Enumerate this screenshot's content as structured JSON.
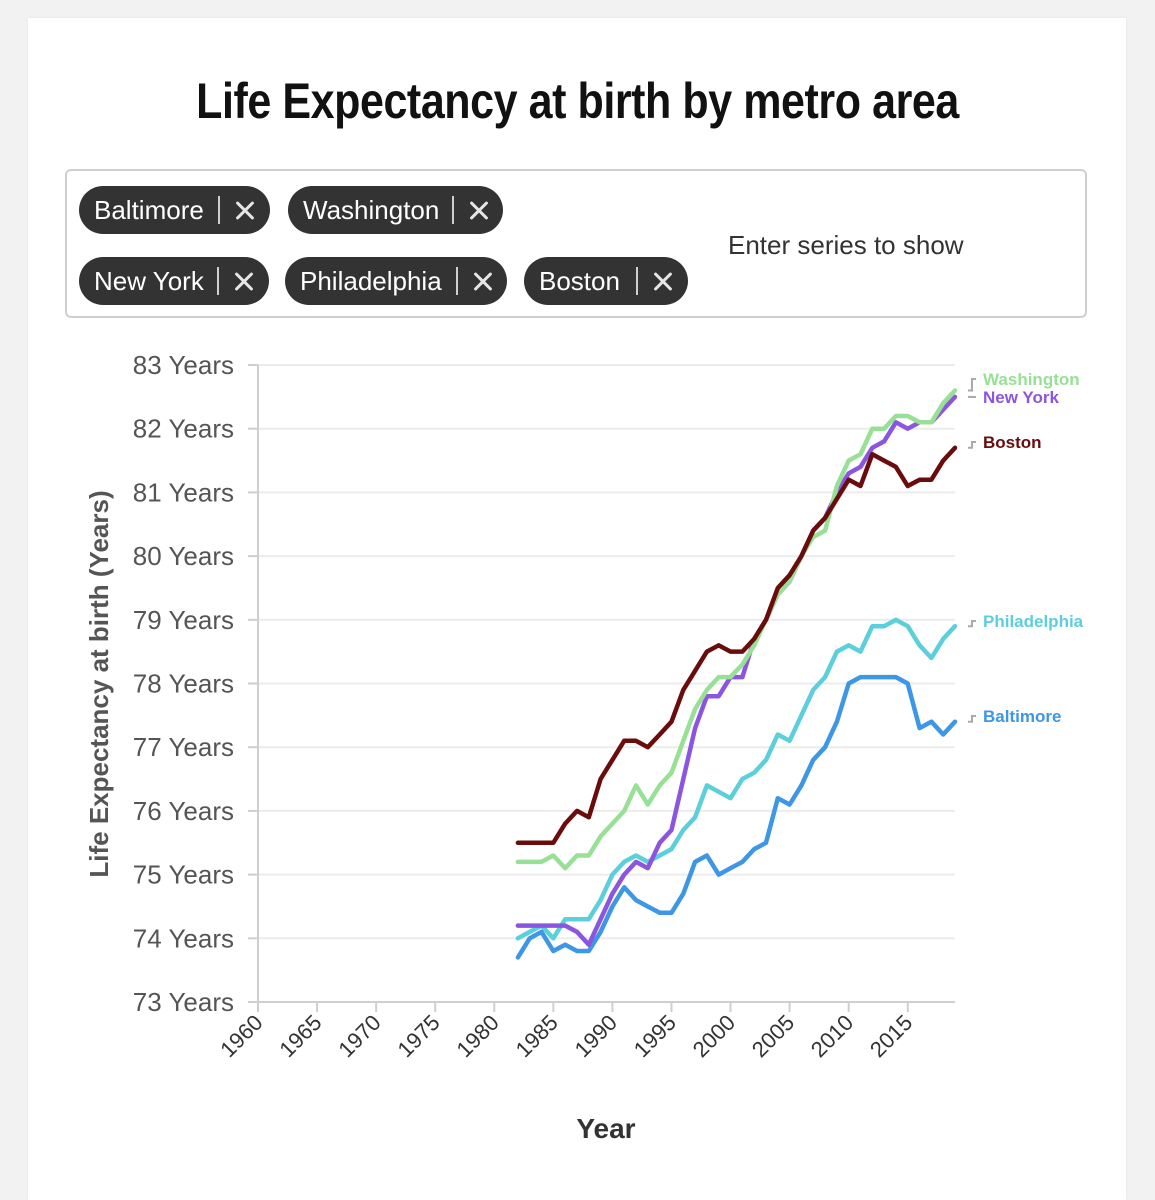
{
  "title": "Life Expectancy at birth by metro area",
  "selector": {
    "placeholder": "Enter series to show",
    "chips": [
      {
        "label": "Baltimore"
      },
      {
        "label": "Washington"
      },
      {
        "label": "New York"
      },
      {
        "label": "Philadelphia"
      },
      {
        "label": "Boston"
      }
    ]
  },
  "colors": {
    "Washington": "#98e096",
    "New York": "#8c55e0",
    "Boston": "#6b0c0c",
    "Philadelphia": "#5ccfdc",
    "Baltimore": "#3d96e6"
  },
  "chart_data": {
    "type": "line",
    "title": "Life Expectancy at birth by metro area",
    "xlabel": "Year",
    "ylabel": "Life Expectancy at birth (Years)",
    "xlim": [
      1960,
      2019
    ],
    "ylim": [
      73,
      83
    ],
    "x_ticks": [
      1960,
      1965,
      1970,
      1975,
      1980,
      1985,
      1990,
      1995,
      2000,
      2005,
      2010,
      2015
    ],
    "y_ticks": [
      73,
      74,
      75,
      76,
      77,
      78,
      79,
      80,
      81,
      82,
      83
    ],
    "y_tick_suffix": " Years",
    "grid": true,
    "x": [
      1982,
      1983,
      1984,
      1985,
      1986,
      1987,
      1988,
      1989,
      1990,
      1991,
      1992,
      1993,
      1994,
      1995,
      1996,
      1997,
      1998,
      1999,
      2000,
      2001,
      2002,
      2003,
      2004,
      2005,
      2006,
      2007,
      2008,
      2009,
      2010,
      2011,
      2012,
      2013,
      2014,
      2015,
      2016,
      2017,
      2018,
      2019
    ],
    "series": [
      {
        "name": "Washington",
        "values": [
          75.2,
          75.2,
          75.2,
          75.3,
          75.1,
          75.3,
          75.3,
          75.6,
          75.8,
          76.0,
          76.4,
          76.1,
          76.4,
          76.6,
          77.1,
          77.6,
          77.9,
          78.1,
          78.1,
          78.3,
          78.6,
          79.0,
          79.4,
          79.6,
          80.0,
          80.3,
          80.4,
          81.1,
          81.5,
          81.6,
          82.0,
          82.0,
          82.2,
          82.2,
          82.1,
          82.1,
          82.4,
          82.6
        ]
      },
      {
        "name": "New York",
        "values": [
          74.2,
          74.2,
          74.2,
          74.2,
          74.2,
          74.1,
          73.9,
          74.3,
          74.7,
          75.0,
          75.2,
          75.1,
          75.5,
          75.7,
          76.5,
          77.3,
          77.8,
          77.8,
          78.1,
          78.1,
          78.7,
          79.0,
          79.4,
          79.6,
          80.0,
          80.4,
          80.6,
          81.0,
          81.3,
          81.4,
          81.7,
          81.8,
          82.1,
          82.0,
          82.1,
          82.1,
          82.3,
          82.5
        ]
      },
      {
        "name": "Boston",
        "values": [
          75.5,
          75.5,
          75.5,
          75.5,
          75.8,
          76.0,
          75.9,
          76.5,
          76.8,
          77.1,
          77.1,
          77.0,
          77.2,
          77.4,
          77.9,
          78.2,
          78.5,
          78.6,
          78.5,
          78.5,
          78.7,
          79.0,
          79.5,
          79.7,
          80.0,
          80.4,
          80.6,
          80.9,
          81.2,
          81.1,
          81.6,
          81.5,
          81.4,
          81.1,
          81.2,
          81.2,
          81.5,
          81.7
        ]
      },
      {
        "name": "Philadelphia",
        "values": [
          74.0,
          74.1,
          74.2,
          74.0,
          74.3,
          74.3,
          74.3,
          74.6,
          75.0,
          75.2,
          75.3,
          75.2,
          75.3,
          75.4,
          75.7,
          75.9,
          76.4,
          76.3,
          76.2,
          76.5,
          76.6,
          76.8,
          77.2,
          77.1,
          77.5,
          77.9,
          78.1,
          78.5,
          78.6,
          78.5,
          78.9,
          78.9,
          79.0,
          78.9,
          78.6,
          78.4,
          78.7,
          78.9
        ]
      },
      {
        "name": "Baltimore",
        "values": [
          73.7,
          74.0,
          74.1,
          73.8,
          73.9,
          73.8,
          73.8,
          74.1,
          74.5,
          74.8,
          74.6,
          74.5,
          74.4,
          74.4,
          74.7,
          75.2,
          75.3,
          75.0,
          75.1,
          75.2,
          75.4,
          75.5,
          76.2,
          76.1,
          76.4,
          76.8,
          77.0,
          77.4,
          78.0,
          78.1,
          78.1,
          78.1,
          78.1,
          78.0,
          77.3,
          77.4,
          77.2,
          77.4
        ]
      }
    ]
  }
}
